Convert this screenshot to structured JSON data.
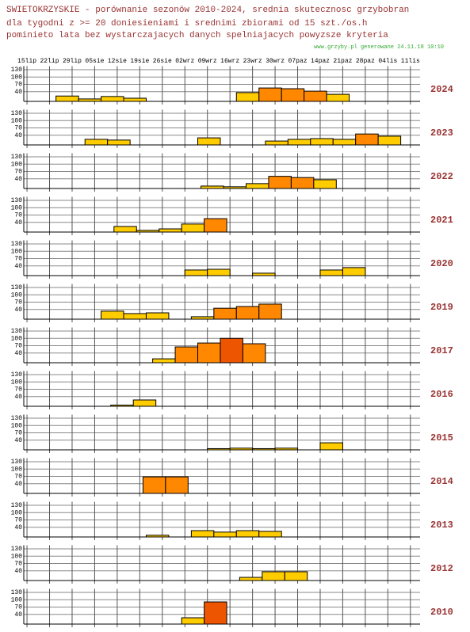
{
  "chart_data": {
    "type": "bar",
    "title": [
      "SWIETOKRZYSKIE - porównanie sezonów 2010-2024, srednia skutecznosc grzybobran",
      "dla tygodni z >= 20 doniesieniami i srednimi zbiorami od 15 szt./os.h",
      "pominieto lata bez wystarczajacych danych spelniajacych powyzsze kryteria"
    ],
    "source": "www.grzyby.pl generowane 24.11.18 10:10",
    "xlim": [
      -1,
      122
    ],
    "xticks": [
      {
        "value": 0,
        "label": "15lip"
      },
      {
        "value": 7,
        "label": "22lip"
      },
      {
        "value": 14,
        "label": "29lip"
      },
      {
        "value": 21,
        "label": "05sie"
      },
      {
        "value": 28,
        "label": "12sie"
      },
      {
        "value": 35,
        "label": "19sie"
      },
      {
        "value": 42,
        "label": "26sie"
      },
      {
        "value": 49,
        "label": "02wrz"
      },
      {
        "value": 56,
        "label": "09wrz"
      },
      {
        "value": 63,
        "label": "16wrz"
      },
      {
        "value": 70,
        "label": "23wrz"
      },
      {
        "value": 77,
        "label": "30wrz"
      },
      {
        "value": 84,
        "label": "07paz"
      },
      {
        "value": 91,
        "label": "14paz"
      },
      {
        "value": 98,
        "label": "21paz"
      },
      {
        "value": 105,
        "label": "28paz"
      },
      {
        "value": 112,
        "label": "04lis"
      },
      {
        "value": 119,
        "label": "11lis"
      }
    ],
    "ylim": [
      0,
      135
    ],
    "yticks": [
      40,
      70,
      100,
      130
    ],
    "bar_days": 7,
    "series": [
      {
        "name": "2024",
        "x": [
          9,
          16,
          23,
          30,
          65,
          72,
          79,
          86,
          93
        ],
        "values": [
          22,
          10,
          20,
          13,
          36,
          55,
          52,
          42,
          29
        ],
        "colors": [
          "#ffcc00",
          "#ffcc00",
          "#ffcc00",
          "#ffcc00",
          "#ffcc00",
          "#ff8800",
          "#ff8800",
          "#ff8800",
          "#ffcc00"
        ]
      },
      {
        "name": "2023",
        "x": [
          18,
          25,
          53,
          74,
          81,
          88,
          95,
          102,
          109
        ],
        "values": [
          23,
          20,
          29,
          16,
          23,
          26,
          23,
          45,
          36
        ],
        "colors": [
          "#ffcc00",
          "#ffcc00",
          "#ffcc00",
          "#ffcc00",
          "#ffcc00",
          "#ffcc00",
          "#ffcc00",
          "#ff8800",
          "#ffcc00"
        ]
      },
      {
        "name": "2022",
        "x": [
          54,
          61,
          68,
          75,
          82,
          89
        ],
        "values": [
          10,
          7,
          20,
          50,
          45,
          36
        ],
        "colors": [
          "#ffcc00",
          "#ffcc00",
          "#ffcc00",
          "#ff8800",
          "#ff8800",
          "#ffcc00"
        ]
      },
      {
        "name": "2021",
        "x": [
          27,
          34,
          41,
          48,
          55
        ],
        "values": [
          23,
          7,
          13,
          33,
          55
        ],
        "colors": [
          "#ffcc00",
          "#ffcc00",
          "#ffcc00",
          "#ffcc00",
          "#ff8800"
        ]
      },
      {
        "name": "2020",
        "x": [
          49,
          56,
          70,
          91,
          98
        ],
        "values": [
          23,
          26,
          10,
          23,
          33
        ],
        "colors": [
          "#ffcc00",
          "#ffcc00",
          "#ffcc00",
          "#ffcc00",
          "#ffcc00"
        ]
      },
      {
        "name": "2019",
        "x": [
          23,
          30,
          37,
          51,
          58,
          65,
          72
        ],
        "values": [
          33,
          23,
          26,
          10,
          45,
          52,
          62
        ],
        "colors": [
          "#ffcc00",
          "#ffcc00",
          "#ffcc00",
          "#ffcc00",
          "#ff8800",
          "#ff8800",
          "#ff8800"
        ]
      },
      {
        "name": "2017",
        "x": [
          39,
          46,
          53,
          60,
          67
        ],
        "values": [
          16,
          65,
          81,
          100,
          78
        ],
        "colors": [
          "#ffcc00",
          "#ff8800",
          "#ff8800",
          "#ee5500",
          "#ff8800"
        ]
      },
      {
        "name": "2016",
        "x": [
          26,
          33
        ],
        "values": [
          5,
          26
        ],
        "colors": [
          "#ffcc00",
          "#ffcc00"
        ]
      },
      {
        "name": "2015",
        "x": [
          56,
          63,
          70,
          77,
          91
        ],
        "values": [
          5,
          7,
          5,
          7,
          29
        ],
        "colors": [
          "#ffcc00",
          "#ffcc00",
          "#ffcc00",
          "#ffcc00",
          "#ffcc00"
        ]
      },
      {
        "name": "2014",
        "x": [
          36,
          43
        ],
        "values": [
          68,
          68
        ],
        "colors": [
          "#ff8800",
          "#ff8800"
        ]
      },
      {
        "name": "2013",
        "x": [
          37,
          51,
          58,
          65,
          72
        ],
        "values": [
          7,
          26,
          20,
          26,
          23
        ],
        "colors": [
          "#ffcc00",
          "#ffcc00",
          "#ffcc00",
          "#ffcc00",
          "#ffcc00"
        ]
      },
      {
        "name": "2012",
        "x": [
          66,
          73,
          80
        ],
        "values": [
          13,
          36,
          36
        ],
        "colors": [
          "#ffcc00",
          "#ffcc00",
          "#ffcc00"
        ]
      },
      {
        "name": "2010",
        "x": [
          48,
          55
        ],
        "values": [
          26,
          91
        ],
        "colors": [
          "#ffcc00",
          "#ee5500"
        ]
      }
    ]
  }
}
